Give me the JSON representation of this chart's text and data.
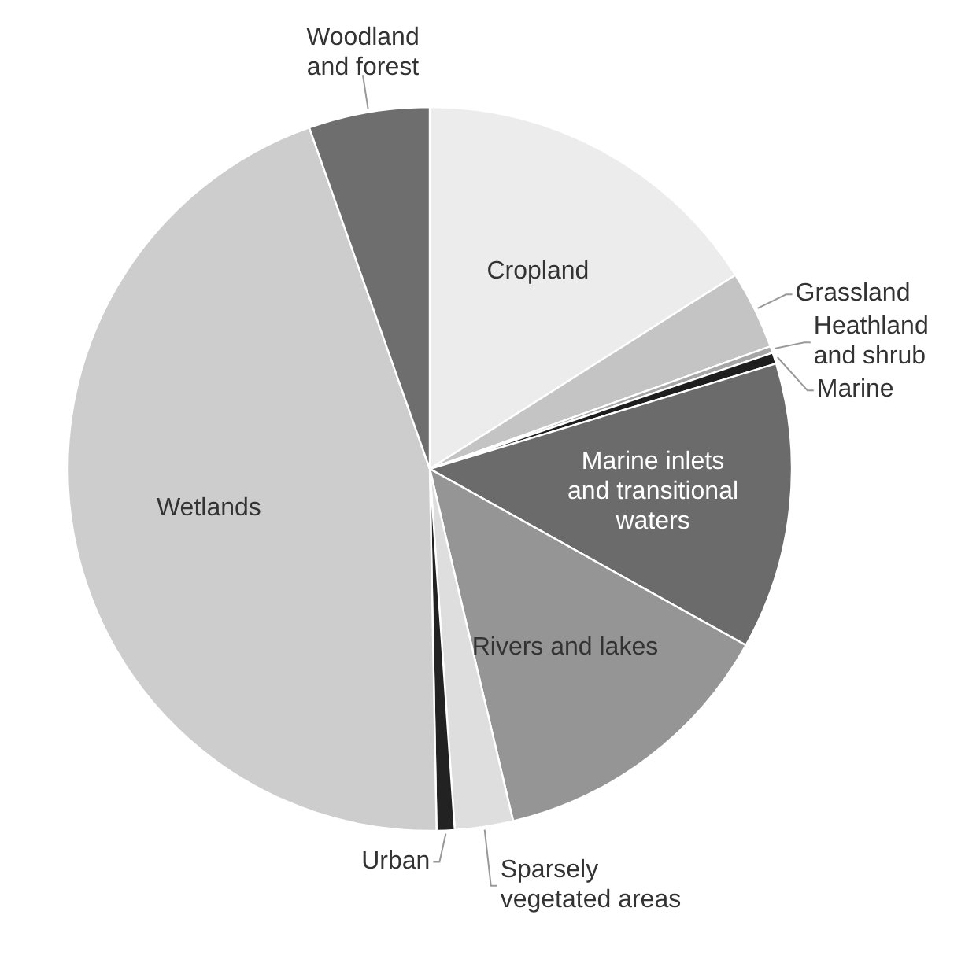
{
  "chart_data": {
    "type": "pie",
    "categories": [
      "Cropland",
      "Grassland",
      "Heathland and shrub",
      "Marine",
      "Marine inlets and transitional waters",
      "Rivers and lakes",
      "Sparsely vegetated areas",
      "Urban",
      "Wetlands",
      "Woodland and forest"
    ],
    "values": [
      16,
      3.5,
      0.3,
      0.5,
      12.8,
      13.2,
      2.6,
      0.8,
      44.9,
      5.4
    ],
    "colors": [
      "#ececec",
      "#c4c4c4",
      "#a6a6a6",
      "#1e1e1e",
      "#6b6b6b",
      "#959595",
      "#dedede",
      "#222222",
      "#cdcdcd",
      "#6e6e6e"
    ]
  }
}
